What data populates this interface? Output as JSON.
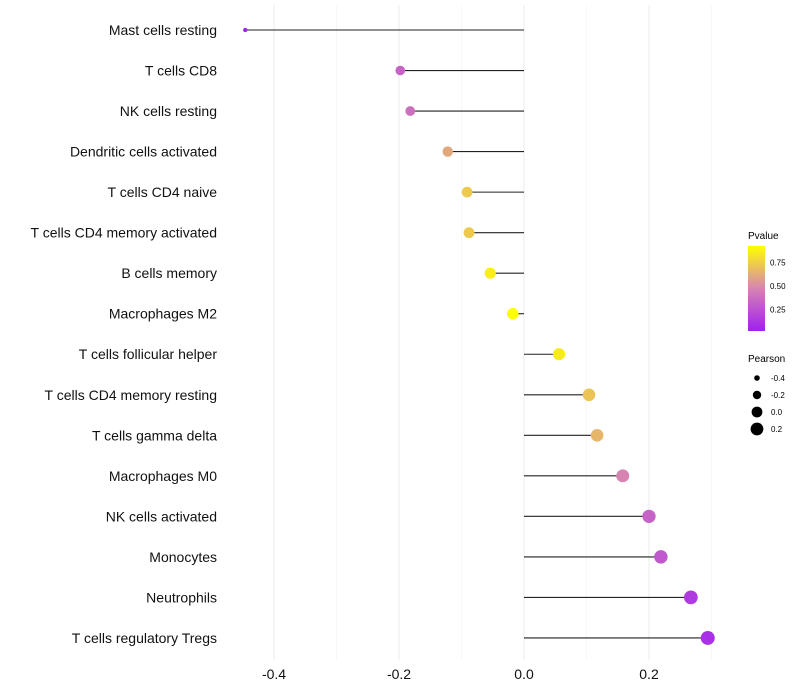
{
  "chart_data": {
    "type": "lollipop",
    "title": "",
    "xlabel": "",
    "ylabel": "",
    "xlim": [
      -0.47,
      0.42
    ],
    "x_ticks": [
      -0.4,
      -0.2,
      0.0,
      0.2
    ],
    "x_tick_labels": [
      "-0.4",
      "-0.2",
      "0.0",
      "0.2"
    ],
    "grid": true,
    "categories": [
      "Mast cells resting",
      "T cells CD8",
      "NK cells resting",
      "Dendritic cells activated",
      "T cells CD4 naive",
      "T cells CD4 memory activated",
      "B cells memory",
      "Macrophages M2",
      "T cells follicular helper",
      "T cells CD4 memory resting",
      "T cells gamma delta",
      "Macrophages M0",
      "NK cells activated",
      "Monocytes",
      "Neutrophils",
      "T cells regulatory  Tregs"
    ],
    "pearson": [
      -0.446,
      -0.198,
      -0.182,
      -0.122,
      -0.091,
      -0.088,
      -0.054,
      -0.018,
      0.056,
      0.104,
      0.117,
      0.158,
      0.2,
      0.219,
      0.267,
      0.294
    ],
    "pvalue": [
      0.03,
      0.33,
      0.38,
      0.6,
      0.72,
      0.72,
      0.85,
      0.91,
      0.84,
      0.7,
      0.65,
      0.47,
      0.33,
      0.28,
      0.15,
      0.1
    ],
    "legend": {
      "placement": "right",
      "color_title": "Pvalue",
      "color_ticks": [
        "0.75",
        "0.50",
        "0.25"
      ],
      "color_range": [
        0.03,
        0.91
      ],
      "colors": {
        "low": "#A020F0",
        "mid": "#D684B2",
        "high": "#FFFF00"
      },
      "size_title": "Pearson",
      "size_ticks": [
        "-0.4",
        "-0.2",
        "0.0",
        "0.2"
      ]
    }
  }
}
